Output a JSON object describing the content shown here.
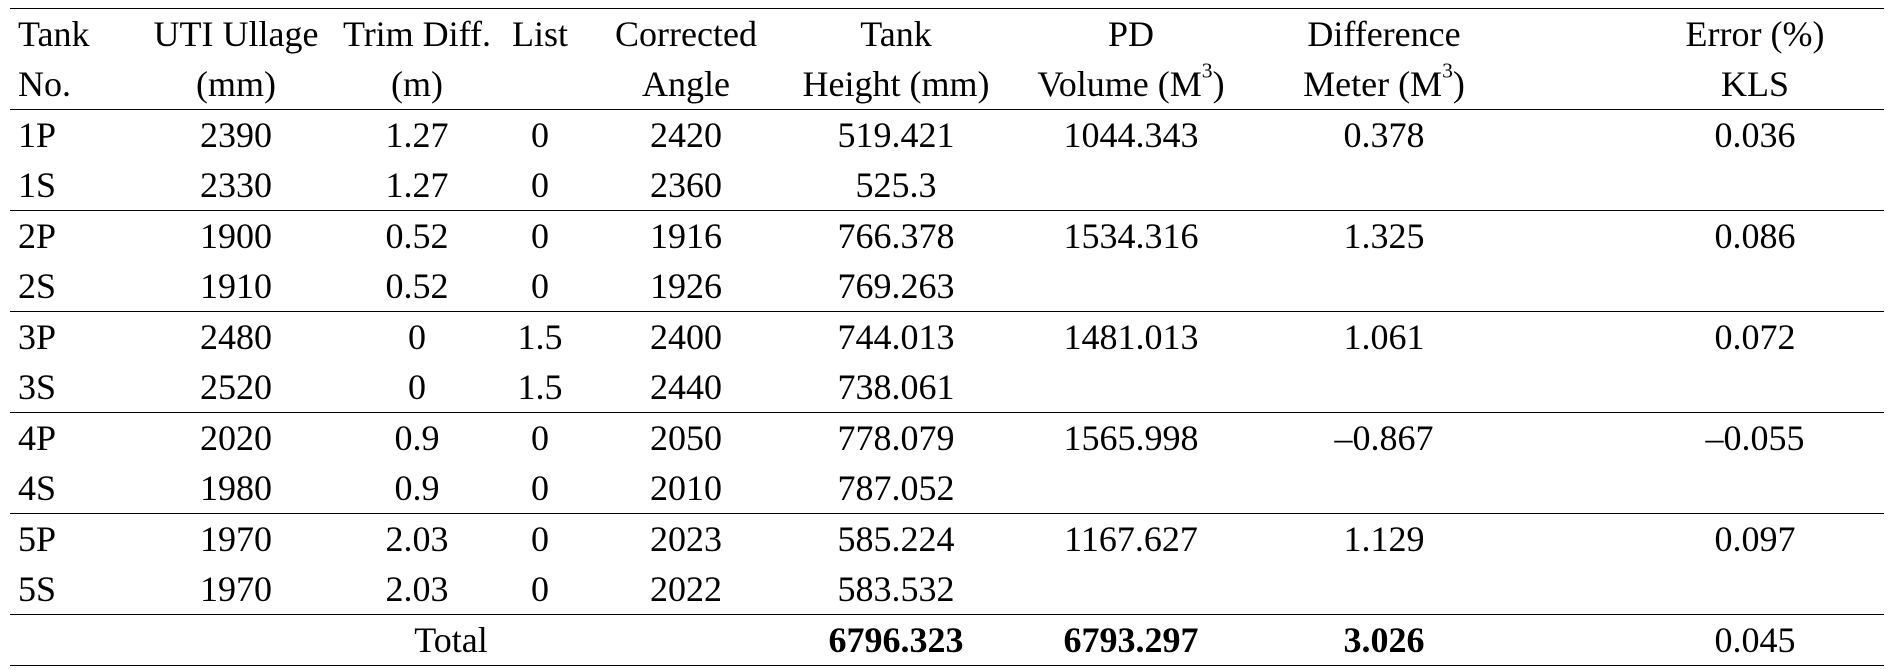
{
  "header": {
    "row1": [
      "Tank",
      "UTI Ullage",
      "Trim Diff.",
      "List",
      "Corrected",
      "Tank",
      "PD",
      "Difference",
      "Error (%)"
    ],
    "row2": [
      "No.",
      "(mm)",
      "(m)",
      "",
      "Angle",
      "Height (mm)",
      "Volume (M",
      "Meter (M",
      "KLS"
    ],
    "sup": "3",
    "close_paren": ")"
  },
  "rows": [
    [
      "1P",
      "2390",
      "1.27",
      "0",
      "2420",
      "519.421",
      "1044.343",
      "0.378",
      "0.036"
    ],
    [
      "1S",
      "2330",
      "1.27",
      "0",
      "2360",
      "525.3",
      "",
      "",
      ""
    ],
    [
      "2P",
      "1900",
      "0.52",
      "0",
      "1916",
      "766.378",
      "1534.316",
      "1.325",
      "0.086"
    ],
    [
      "2S",
      "1910",
      "0.52",
      "0",
      "1926",
      "769.263",
      "",
      "",
      ""
    ],
    [
      "3P",
      "2480",
      "0",
      "1.5",
      "2400",
      "744.013",
      "1481.013",
      "1.061",
      "0.072"
    ],
    [
      "3S",
      "2520",
      "0",
      "1.5",
      "2440",
      "738.061",
      "",
      "",
      ""
    ],
    [
      "4P",
      "2020",
      "0.9",
      "0",
      "2050",
      "778.079",
      "1565.998",
      "–0.867",
      "–0.055"
    ],
    [
      "4S",
      "1980",
      "0.9",
      "0",
      "2010",
      "787.052",
      "",
      "",
      ""
    ],
    [
      "5P",
      "1970",
      "2.03",
      "0",
      "2023",
      "585.224",
      "1167.627",
      "1.129",
      "0.097"
    ],
    [
      "5S",
      "1970",
      "2.03",
      "0",
      "2022",
      "583.532",
      "",
      "",
      ""
    ]
  ],
  "total": {
    "label": "Total",
    "tank_height": "6796.323",
    "pd_volume": "6793.297",
    "difference": "3.026",
    "error": "0.045"
  }
}
